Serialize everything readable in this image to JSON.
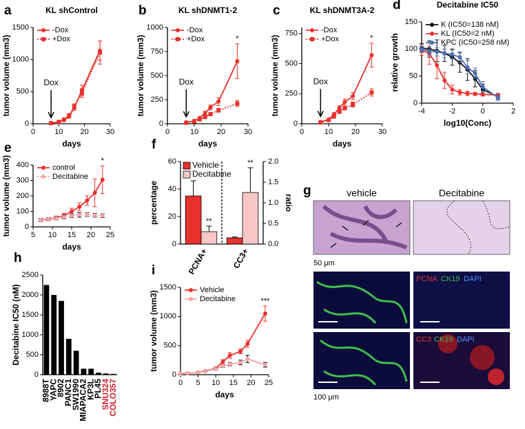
{
  "chart_data": [
    {
      "type": "line",
      "label": "a",
      "title": "KL shControl",
      "xlabel": "days",
      "ylabel": "tumor volume (mm3)",
      "annotation": "Dox",
      "x": [
        7,
        10,
        12,
        14,
        16,
        19,
        26
      ],
      "xlim": [
        0,
        30
      ],
      "xticks": [
        0,
        10,
        20,
        30
      ],
      "ylim": [
        0,
        1500
      ],
      "yticks": [
        0,
        500,
        1000,
        1500
      ],
      "legend": "upper left",
      "series": [
        {
          "name": "-Dox",
          "color": "#e8322c",
          "marker": "circle",
          "dash": false,
          "values": [
            10,
            25,
            55,
            110,
            250,
            520,
            1140
          ],
          "errors": [
            5,
            8,
            12,
            20,
            40,
            80,
            150
          ]
        },
        {
          "name": "+Dox",
          "color": "#e8322c",
          "marker": "square",
          "dash": true,
          "values": [
            10,
            30,
            65,
            130,
            270,
            480,
            1110
          ],
          "errors": [
            5,
            8,
            12,
            20,
            40,
            70,
            180
          ]
        }
      ]
    },
    {
      "type": "line",
      "label": "b",
      "title": "KL shDNMT1-2",
      "xlabel": "days",
      "ylabel": "tumor volume (mm3)",
      "annotation": "Dox",
      "significance": "*",
      "x": [
        7,
        10,
        12,
        14,
        16,
        19,
        26
      ],
      "xlim": [
        0,
        30
      ],
      "xticks": [
        0,
        10,
        20,
        30
      ],
      "ylim": [
        0,
        1000
      ],
      "yticks": [
        0,
        250,
        500,
        750,
        1000
      ],
      "legend": "upper left",
      "series": [
        {
          "name": "-Dox",
          "color": "#e8322c",
          "marker": "circle",
          "dash": false,
          "values": [
            15,
            30,
            60,
            110,
            170,
            230,
            650
          ],
          "errors": [
            5,
            8,
            10,
            20,
            25,
            40,
            180
          ]
        },
        {
          "name": "+Dox",
          "color": "#e8322c",
          "marker": "square",
          "dash": true,
          "values": [
            10,
            25,
            45,
            70,
            100,
            140,
            210
          ],
          "errors": [
            5,
            6,
            8,
            10,
            15,
            20,
            30
          ]
        }
      ]
    },
    {
      "type": "line",
      "label": "c",
      "title": "KL shDNMT3A-2",
      "xlabel": "days",
      "ylabel": "tumor volume (mm3)",
      "annotation": "Dox",
      "significance": "*",
      "x": [
        7,
        10,
        12,
        14,
        16,
        19,
        26
      ],
      "xlim": [
        0,
        30
      ],
      "xticks": [
        0,
        10,
        20,
        30
      ],
      "ylim": [
        0,
        800
      ],
      "yticks": [
        0,
        250,
        500,
        750
      ],
      "legend": "upper left",
      "series": [
        {
          "name": "-Dox",
          "color": "#e8322c",
          "marker": "circle",
          "dash": false,
          "values": [
            15,
            35,
            80,
            130,
            180,
            230,
            570
          ],
          "errors": [
            5,
            8,
            10,
            20,
            25,
            30,
            100
          ]
        },
        {
          "name": "+Dox",
          "color": "#e8322c",
          "marker": "square",
          "dash": true,
          "values": [
            10,
            30,
            60,
            100,
            130,
            160,
            260
          ],
          "errors": [
            5,
            6,
            10,
            15,
            15,
            20,
            30
          ]
        }
      ]
    },
    {
      "type": "line",
      "label": "d",
      "title": "Decitabine IC50",
      "xlabel": "log10(Conc)",
      "ylabel": "relative growth",
      "x": [
        -4,
        -3.5,
        -3,
        -2.5,
        -2,
        -1.5,
        -1,
        -0.5,
        0,
        1
      ],
      "xlim": [
        -4,
        2
      ],
      "xticks": [
        -4,
        -2,
        0,
        2
      ],
      "ylim": [
        0,
        150
      ],
      "yticks": [
        0,
        50,
        100,
        150
      ],
      "legend": "upper left",
      "series": [
        {
          "name": "K (IC50=138 nM)",
          "color": "#111111",
          "marker": "circle",
          "dash": false,
          "values": [
            102,
            100,
            97,
            92,
            85,
            75,
            62,
            45,
            25,
            12
          ],
          "errors": [
            8,
            15,
            20,
            15,
            15,
            18,
            20,
            15,
            10,
            5
          ]
        },
        {
          "name": "KL (IC50=2 nM)",
          "color": "#e8322c",
          "marker": "circle",
          "dash": false,
          "values": [
            98,
            92,
            70,
            42,
            25,
            20,
            18,
            17,
            16,
            15
          ],
          "errors": [
            10,
            20,
            25,
            15,
            8,
            5,
            4,
            3,
            3,
            3
          ]
        },
        {
          "name": "KPC (IC50=258 nM)",
          "color": "#4a6fb5",
          "marker": "circle",
          "dash": false,
          "values": [
            100,
            96,
            95,
            92,
            90,
            85,
            66,
            55,
            30,
            10
          ],
          "errors": [
            5,
            8,
            8,
            8,
            8,
            10,
            12,
            10,
            10,
            5
          ]
        }
      ]
    },
    {
      "type": "line",
      "label": "e",
      "xlabel": "days",
      "ylabel": "tumor volume (mm3)",
      "significance": "*",
      "x": [
        7,
        9,
        11,
        13,
        15,
        17,
        19,
        21,
        23
      ],
      "xlim": [
        5,
        25
      ],
      "xticks": [
        5,
        10,
        15,
        20,
        25
      ],
      "ylim": [
        0,
        400
      ],
      "yticks": [
        0,
        100,
        200,
        300,
        400
      ],
      "legend": "upper left",
      "series": [
        {
          "name": "control",
          "color": "#e8322c",
          "marker": "circle",
          "dash": false,
          "values": [
            45,
            50,
            58,
            72,
            100,
            130,
            170,
            220,
            305
          ],
          "errors": [
            10,
            10,
            12,
            15,
            20,
            25,
            30,
            90,
            90
          ]
        },
        {
          "name": "Decitabine",
          "color": "#f4a6a8",
          "marker": "circle",
          "dash": true,
          "values": [
            45,
            50,
            55,
            65,
            72,
            78,
            80,
            75,
            72
          ],
          "errors": [
            10,
            10,
            10,
            12,
            12,
            15,
            12,
            12,
            12
          ]
        }
      ]
    },
    {
      "type": "bar",
      "label": "f",
      "ylabel": "percentage",
      "y2label": "ratio",
      "categories": [
        "PCNA+",
        "CC3+"
      ],
      "category_axis": [
        "y",
        "y2"
      ],
      "significance": [
        "**",
        "**"
      ],
      "ylim": [
        0,
        60
      ],
      "yticks": [
        0,
        20,
        40,
        60
      ],
      "y2lim": [
        0,
        2
      ],
      "y2ticks": [
        {
          "value": 0,
          "label": "0.0"
        },
        {
          "value": 0.5,
          "label": "0.5"
        },
        {
          "value": 1,
          "label": "1.0"
        },
        {
          "value": 1.5,
          "label": "1.5"
        },
        {
          "value": 2,
          "label": "2.0"
        }
      ],
      "legend": "upper left",
      "series": [
        {
          "name": "Vehicle",
          "color": "#e8322c",
          "values": [
            35,
            0.15
          ],
          "errors": [
            11,
            0.02
          ]
        },
        {
          "name": "Decitabine",
          "color": "#f7c6c6",
          "values": [
            9,
            1.25
          ],
          "errors": [
            4,
            0.6
          ]
        }
      ]
    },
    {
      "type": "bar",
      "label": "h",
      "ylabel": "Decitabine IC50 (nM)",
      "color": "#000000",
      "categories": [
        "8988T",
        "YAPC",
        "8902",
        "PANC1",
        "SW1990",
        "MIAPACA2",
        "KP3L",
        "PL45",
        "SNU324",
        "COLO357"
      ],
      "category_colors": [
        "#000000",
        "#000000",
        "#000000",
        "#000000",
        "#000000",
        "#000000",
        "#000000",
        "#000000",
        "#d4202a",
        "#d4202a"
      ],
      "values": [
        2250,
        2000,
        1850,
        900,
        600,
        150,
        150,
        50,
        30,
        20
      ],
      "ylim": [
        0,
        2500
      ],
      "yticks": [
        0,
        500,
        1000,
        1500,
        2000,
        2500
      ]
    },
    {
      "type": "line",
      "label": "i",
      "xlabel": "days",
      "ylabel": "tumor volume (mm3)",
      "significance": "***",
      "x": [
        0,
        2,
        5,
        7,
        10,
        12,
        14,
        17,
        19,
        24
      ],
      "xlim": [
        0,
        25
      ],
      "xticks": [
        0,
        5,
        10,
        15,
        20,
        25
      ],
      "ylim": [
        0,
        1500
      ],
      "yticks": [
        0,
        500,
        1000,
        1500
      ],
      "legend": "upper left",
      "series": [
        {
          "name": "Vehicle",
          "color": "#e8322c",
          "marker": "circle",
          "dash": false,
          "values": [
            20,
            25,
            40,
            60,
            110,
            220,
            330,
            400,
            530,
            1050
          ],
          "errors": [
            5,
            5,
            8,
            10,
            20,
            40,
            50,
            40,
            60,
            130
          ]
        },
        {
          "name": "Decitabine",
          "color": "#f4a6a8",
          "marker": "circle",
          "dash": false,
          "values": [
            20,
            25,
            40,
            55,
            100,
            150,
            180,
            210,
            270,
            170
          ],
          "errors": [
            5,
            5,
            8,
            10,
            20,
            25,
            30,
            40,
            60,
            40
          ]
        }
      ]
    }
  ],
  "images": {
    "label": "g",
    "columns": [
      "vehicle",
      "Decitabine"
    ],
    "scale_bars": [
      "50 μm",
      "100 μm"
    ],
    "stains": [
      [
        "PCNA",
        "CK19",
        "DAPI"
      ],
      [
        "CC3",
        "CK19",
        "DAPI"
      ]
    ]
  }
}
